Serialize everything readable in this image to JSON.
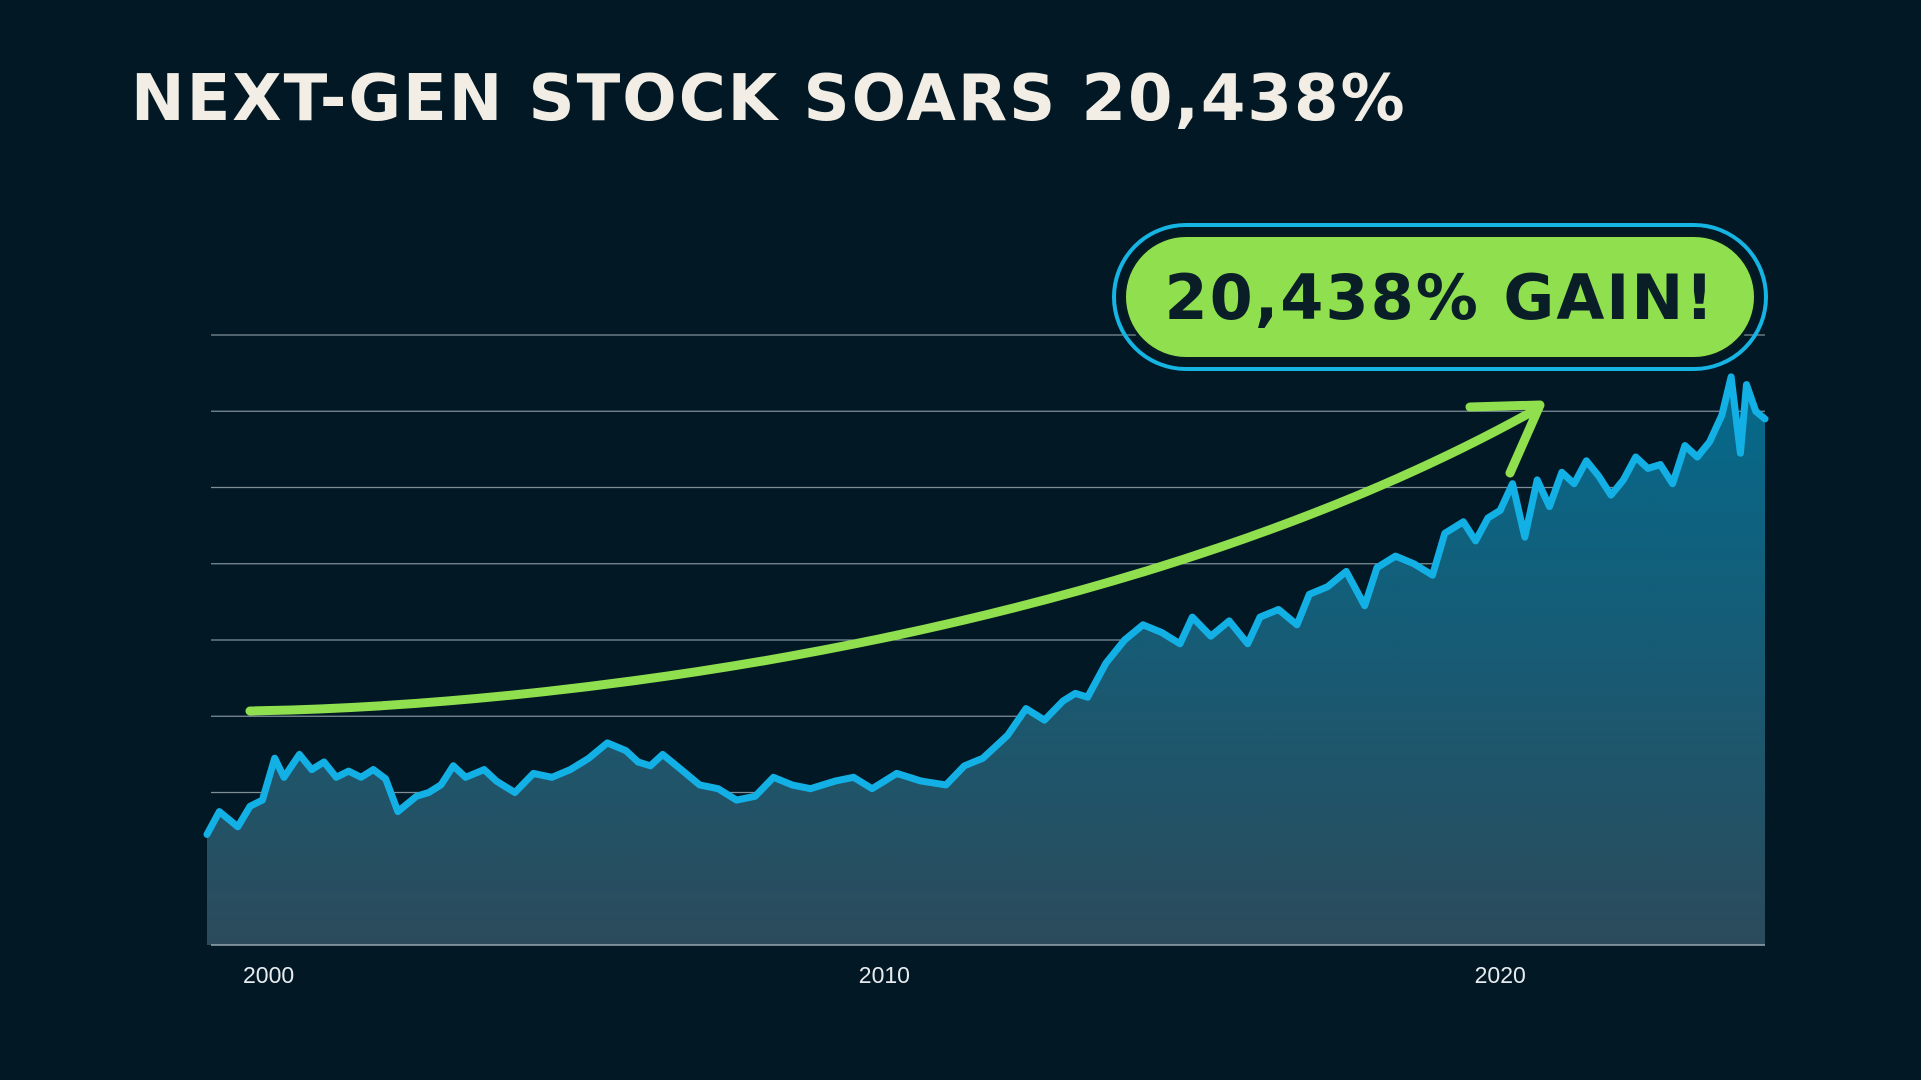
{
  "title": "NEXT-GEN STOCK SOARS 20,438%",
  "badge": {
    "text": "20,438% GAIN!"
  },
  "colors": {
    "background": "#021824",
    "line": "#13b0e6",
    "area_top": "#046a8c",
    "area_bottom": "#2b4b5b",
    "arrow": "#8fdf4f",
    "grid": "#7f8f98"
  },
  "chart_data": {
    "type": "area",
    "title": "NEXT-GEN STOCK SOARS 20,438%",
    "xlabel": "",
    "ylabel": "",
    "x_ticks": [
      2000,
      2010,
      2020
    ],
    "xlim": [
      1999.0,
      2024.3
    ],
    "ylim": [
      0,
      8
    ],
    "grid": true,
    "gridlines": 8,
    "y_tick_labels_visible": false,
    "annotations": [
      "20,438% GAIN!"
    ],
    "series": [
      {
        "x": [
          1999.0,
          1999.2,
          1999.5,
          1999.7,
          1999.9,
          2000.1,
          2000.25,
          2000.5,
          2000.7,
          2000.9,
          2001.1,
          2001.3,
          2001.5,
          2001.7,
          2001.9,
          2002.1,
          2002.4,
          2002.6,
          2002.8,
          2003.0,
          2003.2,
          2003.5,
          2003.7,
          2004.0,
          2004.3,
          2004.6,
          2004.9,
          2005.2,
          2005.5,
          2005.8,
          2006.0,
          2006.2,
          2006.4,
          2006.7,
          2007.0,
          2007.3,
          2007.6,
          2007.9,
          2008.2,
          2008.5,
          2008.8,
          2009.0,
          2009.2,
          2009.5,
          2009.8,
          2010.2,
          2010.6,
          2011.0,
          2011.3,
          2011.6,
          2011.8,
          2012.0,
          2012.3,
          2012.6,
          2012.9,
          2013.1,
          2013.3,
          2013.6,
          2013.9,
          2014.2,
          2014.5,
          2014.8,
          2015.0,
          2015.3,
          2015.6,
          2015.9,
          2016.1,
          2016.4,
          2016.7,
          2016.9,
          2017.2,
          2017.5,
          2017.8,
          2018.0,
          2018.3,
          2018.6,
          2018.9,
          2019.1,
          2019.4,
          2019.6,
          2019.8,
          2020.0,
          2020.2,
          2020.4,
          2020.6,
          2020.8,
          2021.0,
          2021.2,
          2021.4,
          2021.6,
          2021.8,
          2022.0,
          2022.2,
          2022.4,
          2022.6,
          2022.8,
          2023.0,
          2023.2,
          2023.4,
          2023.6,
          2023.75,
          2023.9,
          2024.0,
          2024.15,
          2024.3
        ],
        "y": [
          1.45,
          1.75,
          1.55,
          1.82,
          1.9,
          2.45,
          2.2,
          2.5,
          2.3,
          2.4,
          2.2,
          2.28,
          2.2,
          2.3,
          2.18,
          1.75,
          1.95,
          2.0,
          2.1,
          2.35,
          2.2,
          2.3,
          2.15,
          2.0,
          2.25,
          2.2,
          2.3,
          2.45,
          2.65,
          2.55,
          2.4,
          2.35,
          2.5,
          2.3,
          2.1,
          2.05,
          1.9,
          1.95,
          2.2,
          2.1,
          2.05,
          2.1,
          2.15,
          2.2,
          2.05,
          2.25,
          2.15,
          2.1,
          2.35,
          2.45,
          2.6,
          2.75,
          3.1,
          2.95,
          3.2,
          3.3,
          3.25,
          3.7,
          4.0,
          4.2,
          4.1,
          3.95,
          4.3,
          4.05,
          4.25,
          3.95,
          4.3,
          4.4,
          4.2,
          4.6,
          4.7,
          4.9,
          4.45,
          4.95,
          5.1,
          5.0,
          4.85,
          5.4,
          5.55,
          5.3,
          5.6,
          5.7,
          6.05,
          5.35,
          6.1,
          5.75,
          6.2,
          6.05,
          6.35,
          6.15,
          5.9,
          6.1,
          6.4,
          6.25,
          6.3,
          6.05,
          6.55,
          6.4,
          6.6,
          6.95,
          7.45,
          6.45,
          7.35,
          7.0,
          6.9
        ]
      }
    ]
  }
}
